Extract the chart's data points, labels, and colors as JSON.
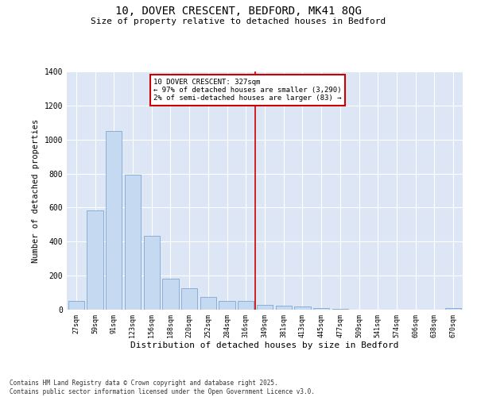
{
  "title_line1": "10, DOVER CRESCENT, BEDFORD, MK41 8QG",
  "title_line2": "Size of property relative to detached houses in Bedford",
  "xlabel": "Distribution of detached houses by size in Bedford",
  "ylabel": "Number of detached properties",
  "categories": [
    "27sqm",
    "59sqm",
    "91sqm",
    "123sqm",
    "156sqm",
    "188sqm",
    "220sqm",
    "252sqm",
    "284sqm",
    "316sqm",
    "349sqm",
    "381sqm",
    "413sqm",
    "445sqm",
    "477sqm",
    "509sqm",
    "541sqm",
    "574sqm",
    "606sqm",
    "638sqm",
    "670sqm"
  ],
  "values": [
    50,
    585,
    1050,
    795,
    435,
    180,
    125,
    75,
    50,
    50,
    30,
    25,
    20,
    10,
    5,
    0,
    0,
    0,
    0,
    0,
    10
  ],
  "bar_color": "#c5d9f1",
  "bar_edge_color": "#7da6d5",
  "vline_x_index": 9.5,
  "vline_color": "#cc0000",
  "annotation_text": "10 DOVER CRESCENT: 327sqm\n← 97% of detached houses are smaller (3,290)\n2% of semi-detached houses are larger (83) →",
  "annotation_box_color": "#cc0000",
  "annotation_box_facecolor": "white",
  "ylim": [
    0,
    1400
  ],
  "yticks": [
    0,
    200,
    400,
    600,
    800,
    1000,
    1200,
    1400
  ],
  "background_color": "#dce6f5",
  "grid_color": "white",
  "footer_line1": "Contains HM Land Registry data © Crown copyright and database right 2025.",
  "footer_line2": "Contains public sector information licensed under the Open Government Licence v3.0."
}
